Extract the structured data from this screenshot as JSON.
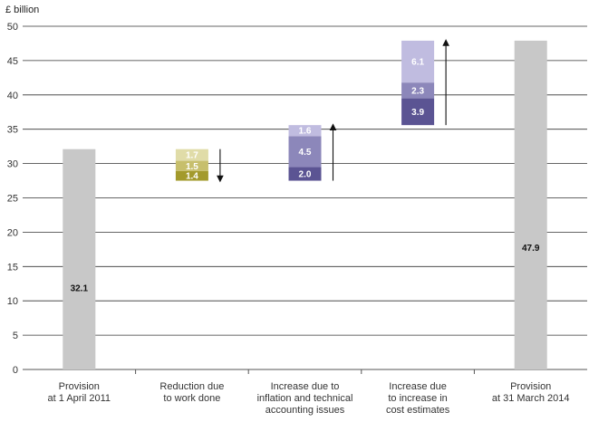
{
  "chart_data": {
    "type": "bar",
    "subtype": "waterfall",
    "ylabel": "£ billion",
    "ylim": [
      0,
      50
    ],
    "yticks": [
      0,
      5,
      10,
      15,
      20,
      25,
      30,
      35,
      40,
      45,
      50
    ],
    "grid": true,
    "categories": [
      [
        "Provision",
        "at 1 April 2011"
      ],
      [
        "Reduction due",
        "to work done"
      ],
      [
        "Increase due to",
        "inflation and technical",
        "accounting issues"
      ],
      [
        "Increase due",
        "to increase in",
        "cost estimates"
      ],
      [
        "Provision",
        "at 31 March 2014"
      ]
    ],
    "bars": [
      {
        "kind": "total",
        "base": 0,
        "segments": [
          {
            "value": 32.1,
            "label": "32.1",
            "color": "#c8c8c8",
            "text_color": "#111111"
          }
        ]
      },
      {
        "kind": "decrease",
        "base": 27.5,
        "arrow": "down",
        "segments": [
          {
            "value": 1.4,
            "label": "1.4",
            "color": "#a39a2c",
            "text_color": "#ffffff"
          },
          {
            "value": 1.5,
            "label": "1.5",
            "color": "#c7bf6c",
            "text_color": "#ffffff"
          },
          {
            "value": 1.7,
            "label": "1.7",
            "color": "#e0dca8",
            "text_color": "#ffffff"
          }
        ]
      },
      {
        "kind": "increase",
        "base": 27.5,
        "arrow": "up",
        "segments": [
          {
            "value": 2.0,
            "label": "2.0",
            "color": "#5b5493",
            "text_color": "#ffffff"
          },
          {
            "value": 4.5,
            "label": "4.5",
            "color": "#8c87ba",
            "text_color": "#ffffff"
          },
          {
            "value": 1.6,
            "label": "1.6",
            "color": "#c0bce0",
            "text_color": "#ffffff"
          }
        ]
      },
      {
        "kind": "increase",
        "base": 35.6,
        "arrow": "up",
        "segments": [
          {
            "value": 3.9,
            "label": "3.9",
            "color": "#5b5493",
            "text_color": "#ffffff"
          },
          {
            "value": 2.3,
            "label": "2.3",
            "color": "#8c87ba",
            "text_color": "#ffffff"
          },
          {
            "value": 6.1,
            "label": "6.1",
            "color": "#c0bce0",
            "text_color": "#ffffff"
          }
        ]
      },
      {
        "kind": "total",
        "base": 0,
        "segments": [
          {
            "value": 47.9,
            "label": "47.9",
            "color": "#c8c8c8",
            "text_color": "#111111"
          }
        ]
      }
    ]
  }
}
